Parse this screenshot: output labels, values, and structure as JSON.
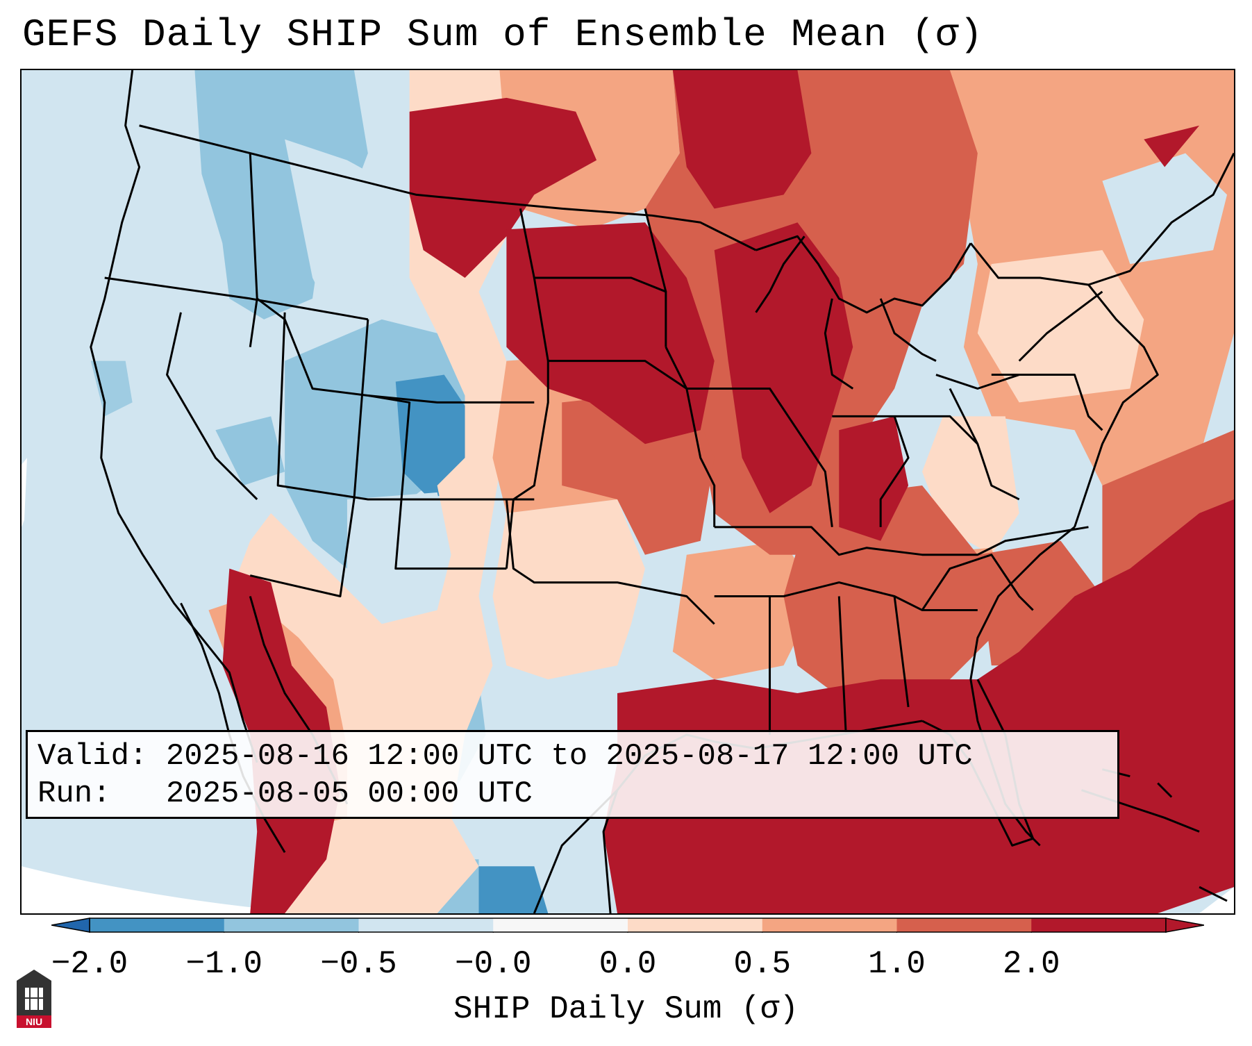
{
  "title": "GEFS Daily SHIP Sum of Ensemble Mean (σ)",
  "info": {
    "valid_line": "Valid: 2025-08-16 12:00 UTC to 2025-08-17 12:00 UTC",
    "run_line": "Run:   2025-08-05 00:00 UTC"
  },
  "colorbar": {
    "label": "SHIP Daily Sum (σ)",
    "ticks": [
      "−2.0",
      "−1.0",
      "−0.5",
      "−0.0",
      "0.0",
      "0.5",
      "1.0",
      "2.0"
    ],
    "colors": [
      "#4393c3",
      "#92c5de",
      "#d1e5f0",
      "#f7f7f7",
      "#fddbc7",
      "#f4a582",
      "#d6604d",
      "#b2182b"
    ],
    "extend": "both"
  },
  "logo": {
    "text": "NIU",
    "name": "niu-logo"
  }
}
